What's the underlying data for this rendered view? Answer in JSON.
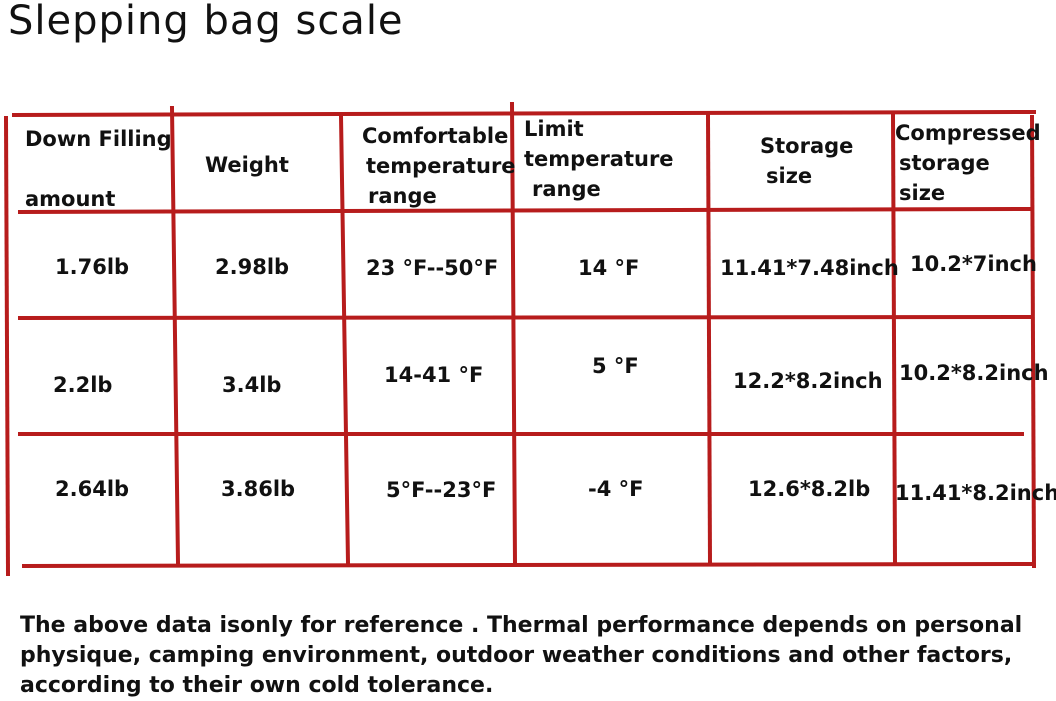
{
  "title": "Slepping bag scale",
  "line_color": "#b71c1c",
  "table": {
    "headers": {
      "down_filling_line1": "Down Filling",
      "down_filling_line2": "amount",
      "weight": "Weight",
      "comfortable_line1": "Comfortable",
      "comfortable_line2": "temperature",
      "comfortable_line3": "range",
      "limit_line1": "Limit",
      "limit_line2": "temperature",
      "limit_line3": "range",
      "storage_line1": "Storage",
      "storage_line2": "size",
      "compressed_line1": "Compressed",
      "compressed_line2": "storage",
      "compressed_line3": "size"
    },
    "rows": [
      {
        "down_filling": "1.76lb",
        "weight": "2.98lb",
        "comfortable": "23 °F--50°F",
        "limit": "14 °F",
        "storage": "11.41*7.48inch",
        "compressed": "10.2*7inch"
      },
      {
        "down_filling": "2.2lb",
        "weight": "3.4lb",
        "comfortable": "14-41 °F",
        "limit": "5 °F",
        "storage": "12.2*8.2inch",
        "compressed": "10.2*8.2inch"
      },
      {
        "down_filling": "2.64lb",
        "weight": "3.86lb",
        "comfortable": "5°F--23°F",
        "limit": "-4 °F",
        "storage": "12.6*8.2lb",
        "compressed": "11.41*8.2inch"
      }
    ]
  },
  "note": "The above data isonly for reference . Thermal performance depends on personal physique, camping environment, outdoor weather conditions and other factors, according to their own cold tolerance."
}
